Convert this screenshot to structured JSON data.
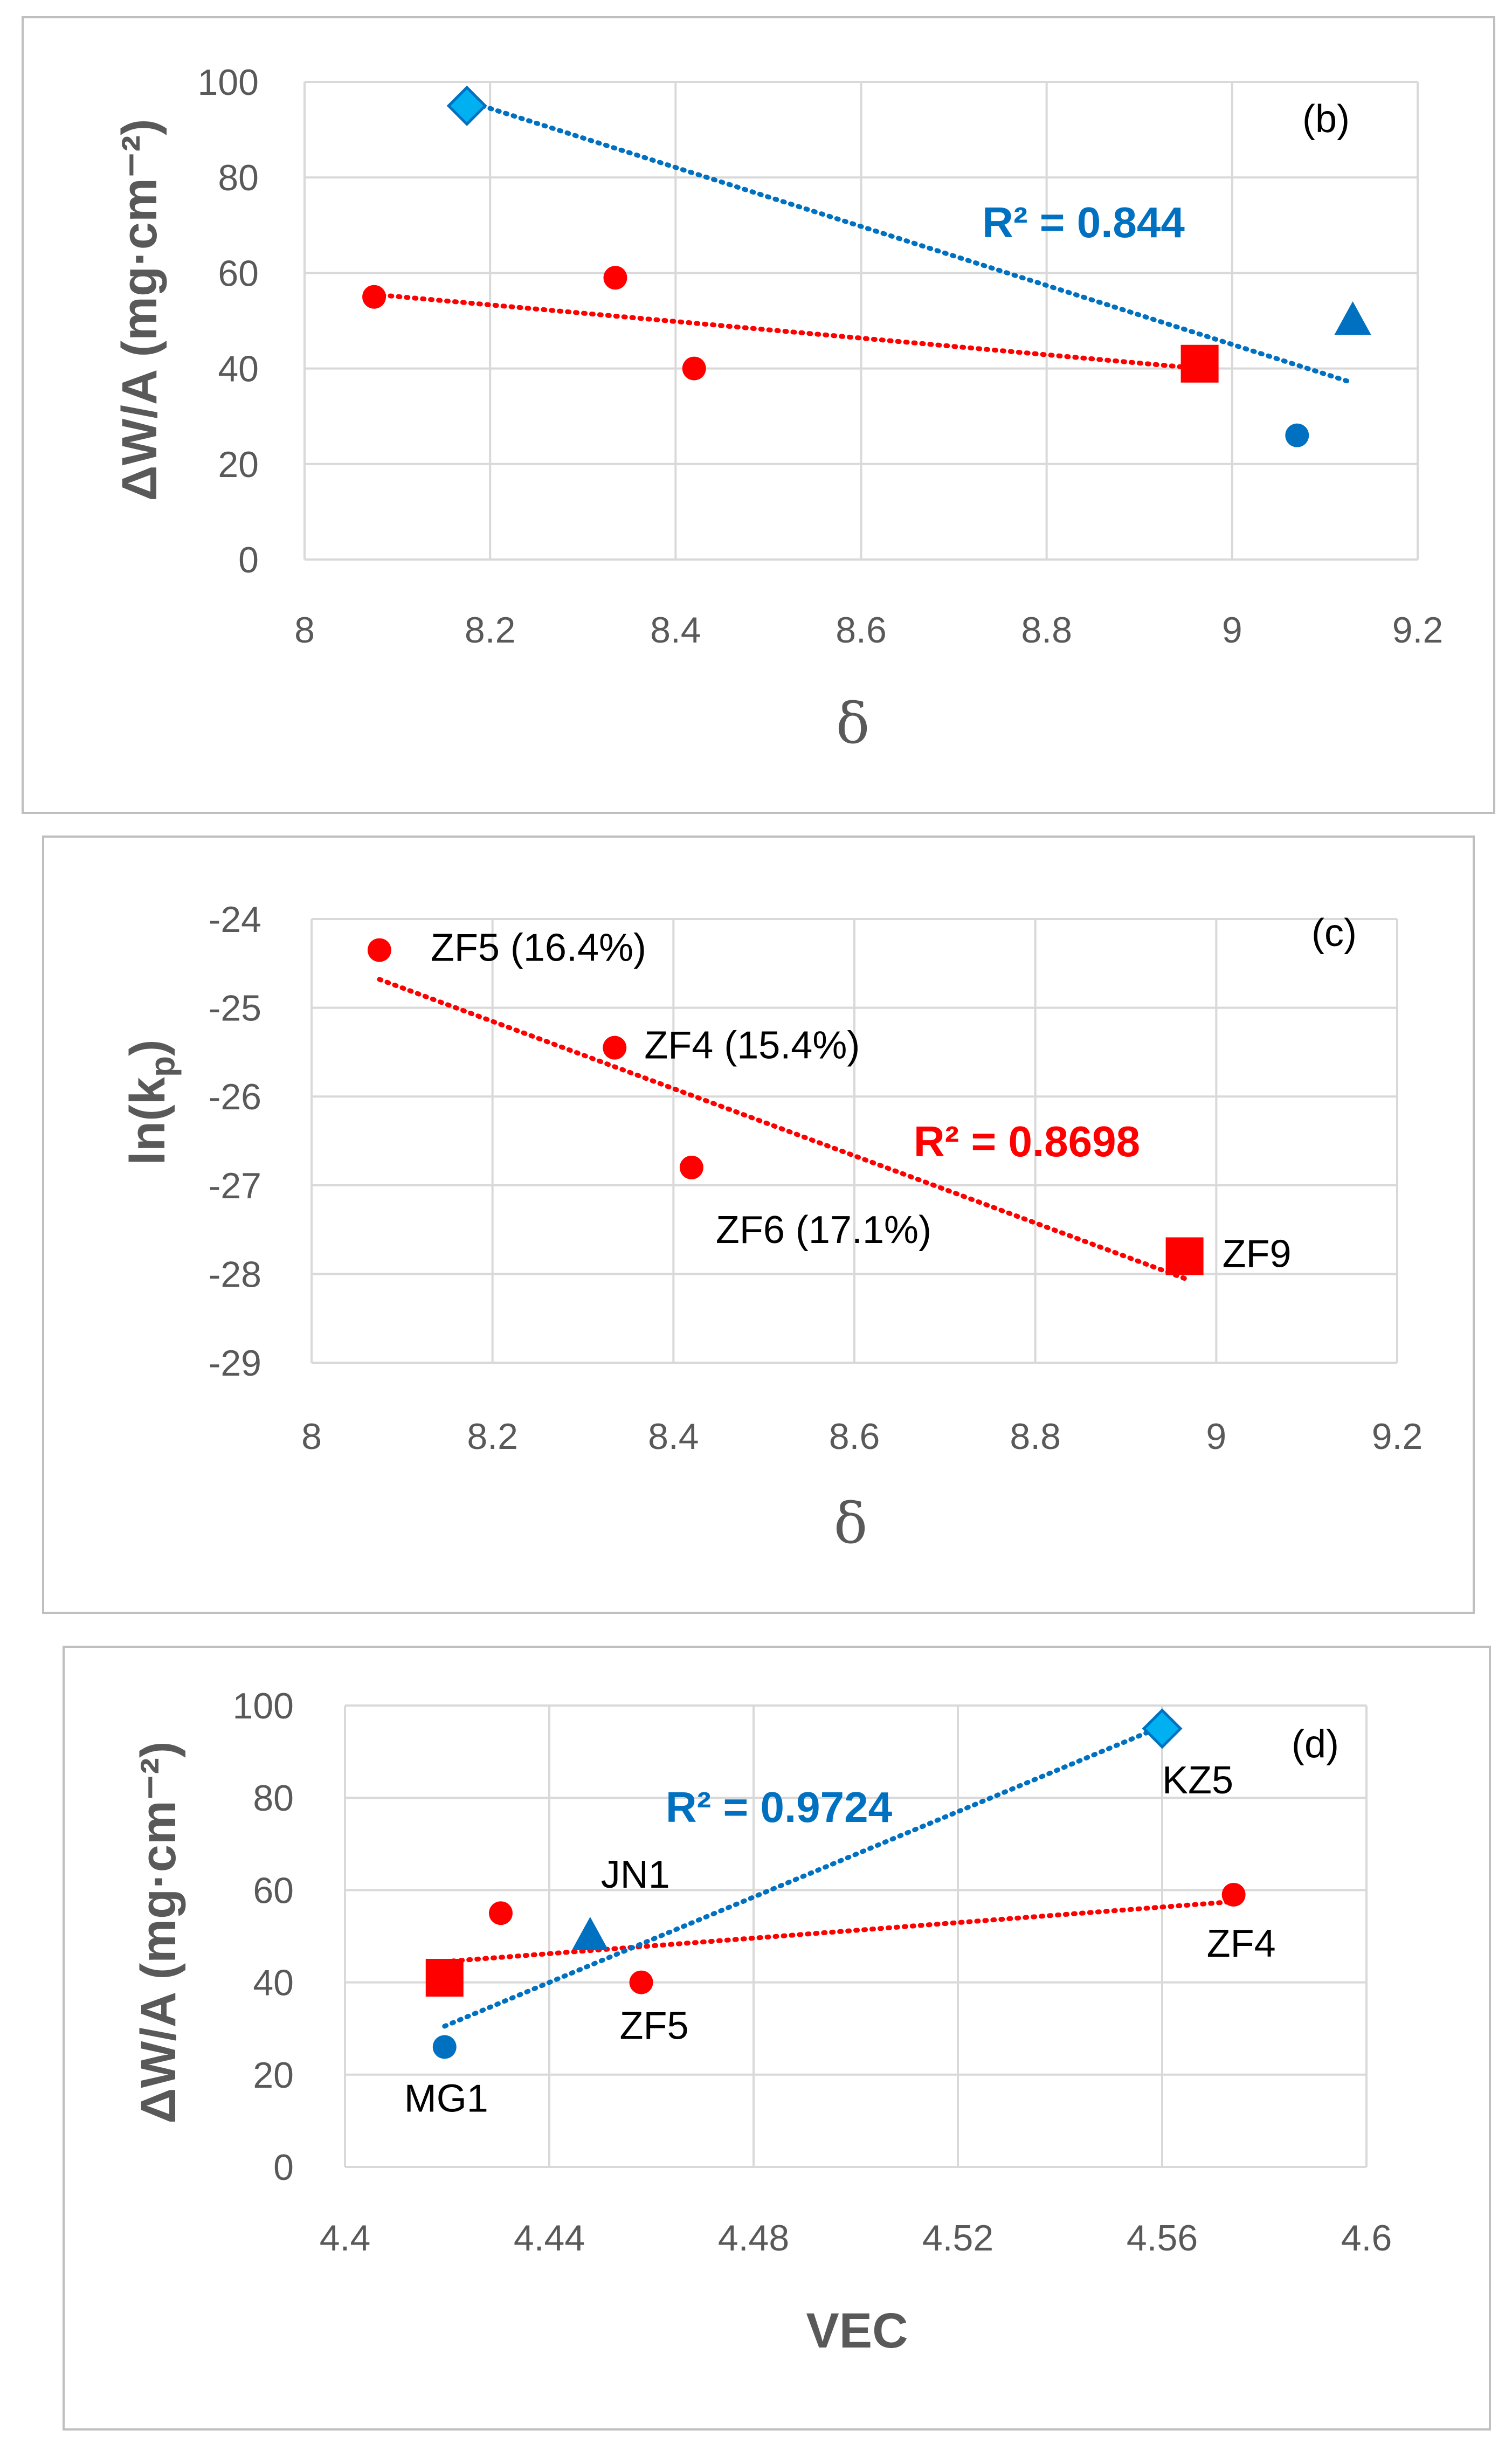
{
  "colors": {
    "red": "#ff0000",
    "blue": "#0070c0",
    "cyan": "#00b0f0",
    "grid": "#d9d9d9",
    "axis_text": "#595959"
  },
  "chart_data": [
    {
      "id": "b",
      "type": "scatter",
      "panel_label": "(b)",
      "xlabel": "δ",
      "ylabel": "ΔW/A (mg·cm⁻²)",
      "xlim": [
        8,
        9.2
      ],
      "ylim": [
        0,
        100
      ],
      "xticks": [
        "8",
        "8.2",
        "8.4",
        "8.6",
        "8.8",
        "9",
        "9.2"
      ],
      "yticks": [
        "0",
        "20",
        "40",
        "60",
        "80",
        "100"
      ],
      "series": [
        {
          "name": "red",
          "color": "#ff0000",
          "points": [
            {
              "x": 8.075,
              "y": 55,
              "marker": "circle"
            },
            {
              "x": 8.335,
              "y": 59,
              "marker": "circle"
            },
            {
              "x": 8.42,
              "y": 40,
              "marker": "circle"
            },
            {
              "x": 8.965,
              "y": 41,
              "marker": "square"
            }
          ]
        },
        {
          "name": "blue",
          "color": "#0070c0",
          "points": [
            {
              "x": 8.175,
              "y": 95,
              "marker": "diamond",
              "color": "#00b0f0"
            },
            {
              "x": 9.07,
              "y": 26,
              "marker": "circle"
            },
            {
              "x": 9.13,
              "y": 50,
              "marker": "triangle"
            }
          ]
        }
      ],
      "trendlines": [
        {
          "color": "#ff0000",
          "x": [
            8.075,
            8.965
          ],
          "y": [
            55.5,
            40
          ]
        },
        {
          "color": "#0070c0",
          "x": [
            8.175,
            9.13
          ],
          "y": [
            96,
            37
          ]
        }
      ],
      "annotations": [
        {
          "text": "R² = 0.844",
          "color": "#0070c0",
          "x": 8.96,
          "y": 71
        }
      ]
    },
    {
      "id": "c",
      "type": "scatter",
      "panel_label": "(c)",
      "xlabel": "δ",
      "ylabel": "ln(k",
      "ylabel_sub": "p",
      "ylabel_end": ")",
      "xlim": [
        8,
        9.2
      ],
      "ylim": [
        -29,
        -24
      ],
      "xticks": [
        "8",
        "8.2",
        "8.4",
        "8.6",
        "8.8",
        "9",
        "9.2"
      ],
      "yticks": [
        "-29",
        "-28",
        "-27",
        "-26",
        "-25",
        "-24"
      ],
      "series": [
        {
          "name": "red",
          "color": "#ff0000",
          "points": [
            {
              "x": 8.075,
              "y": -24.35,
              "marker": "circle",
              "label": "ZF5 (16.4%)"
            },
            {
              "x": 8.335,
              "y": -25.45,
              "marker": "circle",
              "label": "ZF4 (15.4%)"
            },
            {
              "x": 8.42,
              "y": -26.8,
              "marker": "circle",
              "label": "ZF6 (17.1%)"
            },
            {
              "x": 8.965,
              "y": -27.8,
              "marker": "square",
              "label": "ZF9"
            }
          ]
        }
      ],
      "trendlines": [
        {
          "color": "#ff0000",
          "x": [
            8.075,
            8.965
          ],
          "y": [
            -24.68,
            -28.05
          ]
        }
      ],
      "annotations": [
        {
          "text": "R² = 0.8698",
          "color": "#ff0000",
          "x": 8.76,
          "y": -26.65
        }
      ]
    },
    {
      "id": "d",
      "type": "scatter",
      "panel_label": "(d)",
      "xlabel": "VEC",
      "ylabel": "ΔW/A (mg·cm⁻²)",
      "xlim": [
        4.4,
        4.6
      ],
      "ylim": [
        0,
        100
      ],
      "xticks": [
        "4.4",
        "4.44",
        "4.48",
        "4.52",
        "4.56",
        "4.6"
      ],
      "yticks": [
        "0",
        "20",
        "40",
        "60",
        "80",
        "100"
      ],
      "series": [
        {
          "name": "red",
          "color": "#ff0000",
          "points": [
            {
              "x": 4.4195,
              "y": 41,
              "marker": "square"
            },
            {
              "x": 4.4305,
              "y": 55,
              "marker": "circle"
            },
            {
              "x": 4.458,
              "y": 40,
              "marker": "circle",
              "label": "ZF5"
            },
            {
              "x": 4.574,
              "y": 59,
              "marker": "circle",
              "label": "ZF4"
            }
          ]
        },
        {
          "name": "blue",
          "color": "#0070c0",
          "points": [
            {
              "x": 4.4195,
              "y": 26,
              "marker": "circle",
              "label": "MG1"
            },
            {
              "x": 4.448,
              "y": 50,
              "marker": "triangle",
              "label": "JN1"
            },
            {
              "x": 4.56,
              "y": 95,
              "marker": "diamond",
              "color": "#00b0f0",
              "label": "KZ5"
            }
          ]
        }
      ],
      "trendlines": [
        {
          "color": "#ff0000",
          "x": [
            4.4195,
            4.574
          ],
          "y": [
            44.5,
            57.5
          ]
        },
        {
          "color": "#0070c0",
          "x": [
            4.4195,
            4.56
          ],
          "y": [
            30.5,
            95.5
          ]
        }
      ],
      "annotations": [
        {
          "text": "R² = 0.9724",
          "color": "#0070c0",
          "x": 4.4825,
          "y": 77.5
        }
      ]
    }
  ]
}
